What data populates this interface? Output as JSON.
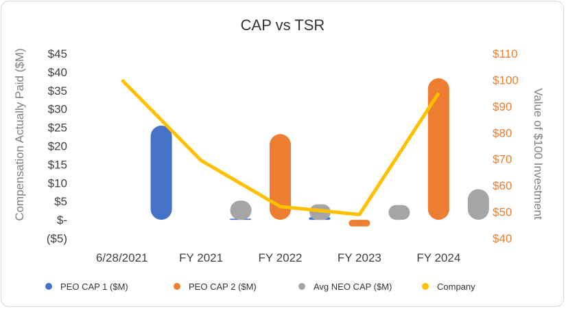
{
  "chart_data": {
    "type": "bar",
    "title": "CAP vs TSR",
    "categories": [
      "6/28/2021",
      "FY 2021",
      "FY 2022",
      "FY 2023",
      "FY 2024"
    ],
    "ylabel": "Compensation Actually Paid ($M)",
    "y2label": "Value of $100 Investment",
    "ylim": [
      -5,
      45
    ],
    "y2lim": [
      40,
      110
    ],
    "yticks": [
      45,
      40,
      35,
      30,
      25,
      20,
      15,
      10,
      5,
      0,
      -5
    ],
    "ytick_labels": [
      "$45",
      "$40",
      "$35",
      "$30",
      "$25",
      "$20",
      "$15",
      "$10",
      "$5",
      "$-",
      "($5)"
    ],
    "y2ticks": [
      110,
      100,
      90,
      80,
      70,
      60,
      50,
      40
    ],
    "y2tick_labels": [
      "$110",
      "$100",
      "$90",
      "$80",
      "$70",
      "$60",
      "$50",
      "$40"
    ],
    "grid": false,
    "legend_position": "bottom",
    "series": [
      {
        "name": "PEO CAP 1 ($M)",
        "type": "bar",
        "axis": "left",
        "color": "#4472c4",
        "values": [
          null,
          25.5,
          0.3,
          0.7,
          null
        ]
      },
      {
        "name": "PEO CAP 2 ($M)",
        "type": "bar",
        "axis": "left",
        "color": "#ed7d31",
        "values": [
          null,
          null,
          23.2,
          -1.8,
          38.3
        ]
      },
      {
        "name": "Avg NEO CAP ($M)",
        "type": "bar",
        "axis": "left",
        "color": "#a5a5a5",
        "values": [
          null,
          5.2,
          4.2,
          4.0,
          8.3
        ]
      },
      {
        "name": "Company",
        "type": "line",
        "axis": "right",
        "color": "#ffc000",
        "values": [
          100,
          69.5,
          52,
          49,
          95
        ]
      }
    ]
  }
}
